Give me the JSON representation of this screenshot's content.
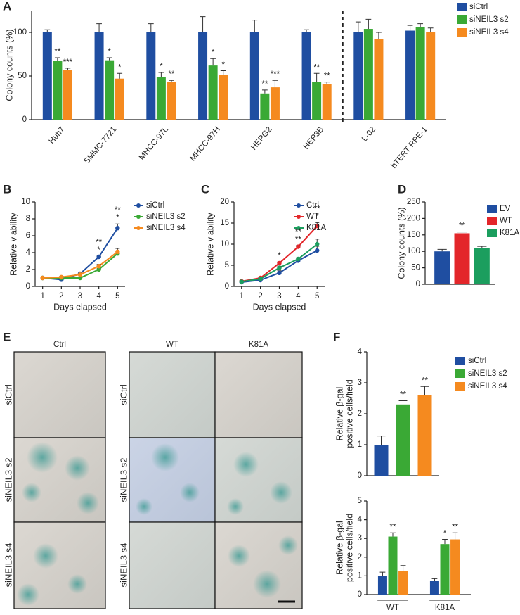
{
  "chart_data": [
    {
      "panel": "A",
      "type": "bar",
      "ylabel": "Colony counts (%)",
      "categories": [
        "Huh7",
        "SMMC-7721",
        "MHCC-97L",
        "MHCC-97H",
        "HEPG2",
        "HEP3B",
        "L-02",
        "hTERT RPE-1"
      ],
      "divider_before_category": 6,
      "series": [
        {
          "name": "siCtrl",
          "color": "#1f4ea1",
          "values": [
            100,
            100,
            100,
            100,
            100,
            100,
            100,
            102
          ],
          "errors": [
            3,
            10,
            10,
            18,
            14,
            3,
            12,
            6
          ],
          "stars": [
            null,
            null,
            null,
            null,
            null,
            null,
            null,
            null
          ]
        },
        {
          "name": "siNEIL3 s2",
          "color": "#3aa935",
          "values": [
            67,
            68,
            49,
            62,
            30,
            43,
            104,
            106
          ],
          "errors": [
            4,
            3,
            5,
            8,
            4,
            10,
            11,
            4
          ],
          "stars": [
            "**",
            "*",
            "*",
            "*",
            "**",
            "**",
            null,
            null
          ]
        },
        {
          "name": "siNEIL3 s4",
          "color": "#f58a1f",
          "values": [
            57,
            47,
            43,
            51,
            37,
            41,
            92,
            100
          ],
          "errors": [
            2,
            6,
            2,
            5,
            8,
            2,
            8,
            5
          ],
          "stars": [
            "***",
            "*",
            "**",
            "*",
            "***",
            "**",
            null,
            null
          ]
        }
      ],
      "ylim": [
        0,
        125
      ],
      "yticks": [
        0,
        50,
        100
      ]
    },
    {
      "panel": "B",
      "type": "line",
      "ylabel": "Relative viability",
      "xlabel": "Days elapsed",
      "x": [
        1,
        2,
        3,
        4,
        5
      ],
      "xlim": [
        0.6,
        5.4
      ],
      "xticks": [
        1,
        2,
        3,
        4,
        5
      ],
      "ylim": [
        0,
        10
      ],
      "yticks": [
        0,
        2,
        4,
        6,
        8,
        10
      ],
      "series": [
        {
          "name": "siCtrl",
          "color": "#1f4ea1",
          "values": [
            1,
            0.8,
            1.5,
            3.5,
            6.9
          ],
          "errors": [
            0.1,
            0.1,
            0.2,
            0.1,
            0.5
          ]
        },
        {
          "name": "siNEIL3 s2",
          "color": "#3aa935",
          "values": [
            1,
            1,
            1.0,
            2.0,
            3.9
          ],
          "errors": [
            0.1,
            0.1,
            0.1,
            0.1,
            0.3
          ]
        },
        {
          "name": "siNEIL3 s4",
          "color": "#f58a1f",
          "values": [
            1,
            1.1,
            1.4,
            2.4,
            4.1
          ],
          "errors": [
            0.1,
            0.1,
            0.1,
            0.2,
            0.4
          ]
        }
      ],
      "annotations": [
        {
          "x": 4,
          "lines": [
            "**",
            "*"
          ]
        },
        {
          "x": 5,
          "lines": [
            "**",
            "*"
          ]
        }
      ]
    },
    {
      "panel": "C",
      "type": "line",
      "ylabel": "Relative viability",
      "xlabel": "Days elapsed",
      "x": [
        1,
        2,
        3,
        4,
        5
      ],
      "xlim": [
        0.6,
        5.4
      ],
      "xticks": [
        1,
        2,
        3,
        4,
        5
      ],
      "ylim": [
        0,
        20
      ],
      "yticks": [
        0,
        5,
        10,
        15,
        20
      ],
      "series": [
        {
          "name": "Ctrl",
          "color": "#1f4ea1",
          "values": [
            1,
            1.5,
            3.2,
            6.1,
            8.5
          ],
          "errors": [
            0.2,
            0.2,
            0.5,
            0.3,
            1.0
          ]
        },
        {
          "name": "WT",
          "color": "#e3262a",
          "values": [
            1.2,
            2,
            5.5,
            9.4,
            14.3
          ],
          "errors": [
            0.2,
            0.2,
            0.3,
            0.3,
            0.8
          ]
        },
        {
          "name": "K81A",
          "color": "#1b9e5e",
          "values": [
            1.1,
            1.8,
            4.4,
            6.5,
            10
          ],
          "errors": [
            0.2,
            0.2,
            0.4,
            0.3,
            1.2
          ]
        }
      ],
      "annotations": [
        {
          "x": 3,
          "lines": [
            "*"
          ]
        },
        {
          "x": 4,
          "lines": [
            "**",
            "**"
          ]
        },
        {
          "x": 5,
          "lines": [
            "**",
            "*"
          ]
        }
      ]
    },
    {
      "panel": "D",
      "type": "bar",
      "ylabel": "Colony counts (%)",
      "categories": [
        "EV",
        "WT",
        "K81A"
      ],
      "colors": [
        "#1f4ea1",
        "#e3262a",
        "#1b9e5e"
      ],
      "values": [
        100,
        155,
        110
      ],
      "errors": [
        6,
        4,
        5
      ],
      "stars": [
        null,
        "**",
        null
      ],
      "ylim": [
        0,
        250
      ],
      "yticks": [
        0,
        50,
        100,
        150,
        200,
        250
      ]
    },
    {
      "panel": "F",
      "type": "bar",
      "ylabel": [
        "Relative β-gal",
        "positive cells/field"
      ],
      "series": [
        {
          "name": "siCtrl",
          "color": "#1f4ea1",
          "values": [
            1
          ],
          "errors": [
            0.28
          ],
          "stars": [
            null
          ]
        },
        {
          "name": "siNEIL3 s2",
          "color": "#3aa935",
          "values": [
            2.3
          ],
          "errors": [
            0.12
          ],
          "stars": [
            "**"
          ]
        },
        {
          "name": "siNEIL3 s4",
          "color": "#f58a1f",
          "values": [
            2.6
          ],
          "errors": [
            0.28
          ],
          "stars": [
            "**"
          ]
        }
      ],
      "ylim": [
        0,
        4
      ],
      "yticks": [
        0,
        1,
        2,
        3,
        4
      ]
    },
    {
      "type": "bar",
      "ylabel": [
        "Relative β-gal",
        "positive cells/field"
      ],
      "categories": [
        "WT",
        "K81A"
      ],
      "series": [
        {
          "name": "siCtrl",
          "color": "#1f4ea1",
          "values": [
            1,
            0.75
          ],
          "errors": [
            0.2,
            0.1
          ],
          "stars": [
            null,
            null
          ]
        },
        {
          "name": "siNEIL3 s2",
          "color": "#3aa935",
          "values": [
            3.1,
            2.7
          ],
          "errors": [
            0.2,
            0.25
          ],
          "stars": [
            "**",
            "*"
          ]
        },
        {
          "name": "siNEIL3 s4",
          "color": "#f58a1f",
          "values": [
            1.25,
            2.95
          ],
          "errors": [
            0.3,
            0.35
          ],
          "stars": [
            null,
            "**"
          ]
        }
      ],
      "ylim": [
        0,
        5
      ],
      "yticks": [
        0,
        1,
        2,
        3,
        4,
        5
      ]
    }
  ],
  "micrographs": {
    "panel": "E",
    "columns": [
      "Ctrl",
      "WT",
      "K81A"
    ],
    "rows": [
      "siCtrl",
      "siNEIL3 s2",
      "siNEIL3 s4"
    ]
  }
}
